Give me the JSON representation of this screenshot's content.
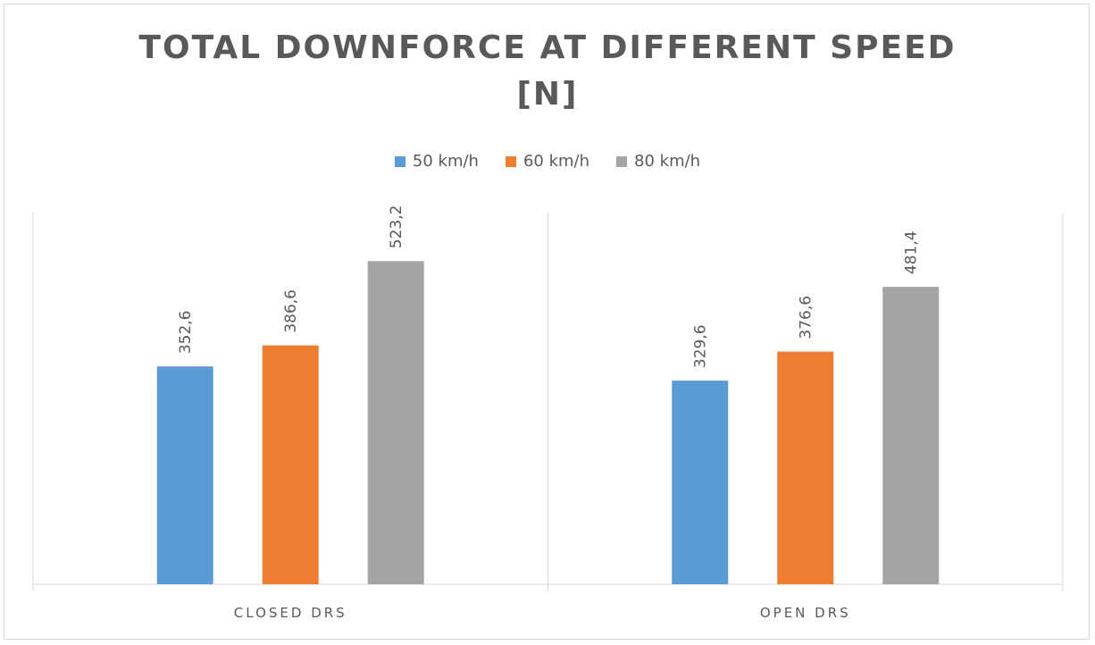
{
  "chart_data": {
    "type": "bar",
    "title_lines": [
      "TOTAL DOWNFORCE AT DIFFERENT SPEED",
      "[N]"
    ],
    "categories": [
      "CLOSED DRS",
      "OPEN DRS"
    ],
    "series": [
      {
        "name": "50 km/h",
        "color": "#5b9bd5",
        "values": [
          352.6,
          329.6
        ],
        "labels": [
          "352,6",
          "329,6"
        ]
      },
      {
        "name": "60 km/h",
        "color": "#ed7d31",
        "values": [
          386.6,
          376.6
        ],
        "labels": [
          "386,6",
          "376,6"
        ]
      },
      {
        "name": "80 km/h",
        "color": "#a5a5a5",
        "values": [
          523.2,
          481.4
        ],
        "labels": [
          "523,2",
          "481,4"
        ]
      }
    ],
    "ylim": [
      0,
      600
    ],
    "grid": false,
    "legend_position": "top"
  }
}
